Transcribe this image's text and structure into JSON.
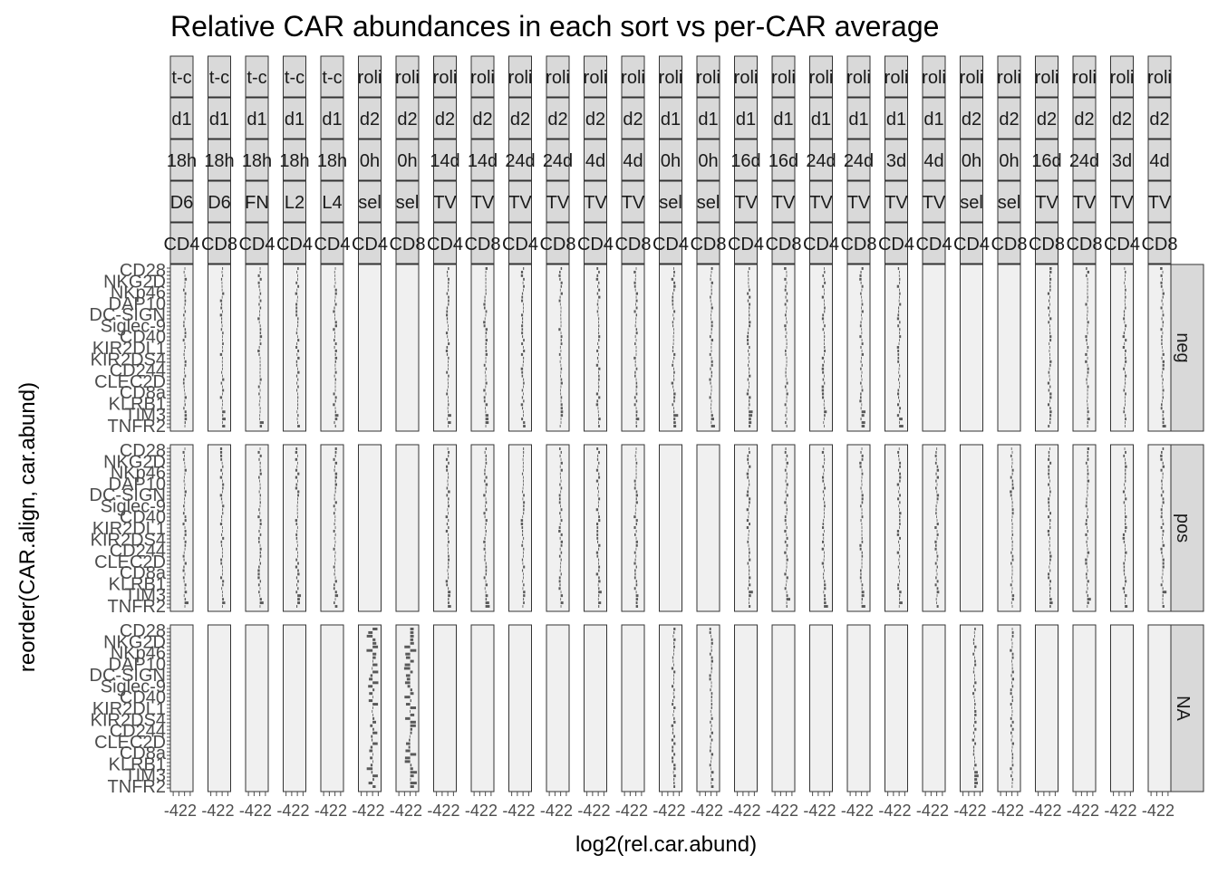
{
  "chart_data": {
    "type": "bar",
    "title": "Relative CAR abundances in each sort vs per-CAR average",
    "xlabel": "log2(rel.car.abund)",
    "ylabel": "reorder(CAR.align, car.abund)",
    "orientation": "horizontal",
    "xlim": [
      -5,
      3
    ],
    "x_tick_values": [
      -4,
      -2,
      0,
      2
    ],
    "x_tick_labels": [
      "-4",
      "-2",
      "0",
      "2"
    ],
    "row_facets": [
      "neg",
      "pos",
      "NA"
    ],
    "column_strips_visible": [
      [
        "t-c",
        "d1",
        "18h",
        "D6",
        "CD4"
      ],
      [
        "t-c",
        "d1",
        "18h",
        "D6",
        "CD8"
      ],
      [
        "t-c",
        "d1",
        "18h",
        "FN",
        "CD4"
      ],
      [
        "t-c",
        "d1",
        "18h",
        "L2",
        "CD4"
      ],
      [
        "t-c",
        "d1",
        "18h",
        "L4",
        "CD4"
      ],
      [
        "roli",
        "d2",
        "0h",
        "sel",
        "CD4"
      ],
      [
        "roli",
        "d2",
        "0h",
        "sel",
        "CD8"
      ],
      [
        "roli",
        "d2",
        "14d",
        "TV",
        "CD4"
      ],
      [
        "roli",
        "d2",
        "14d",
        "TV",
        "CD8"
      ],
      [
        "roli",
        "d2",
        "24d",
        "TV",
        "CD4"
      ],
      [
        "roli",
        "d2",
        "24d",
        "TV",
        "CD8"
      ],
      [
        "roli",
        "d2",
        "4d",
        "TV",
        "CD4"
      ],
      [
        "roli",
        "d2",
        "4d",
        "TV",
        "CD8"
      ],
      [
        "roli",
        "d1",
        "0h",
        "sel",
        "CD4"
      ],
      [
        "roli",
        "d1",
        "0h",
        "sel",
        "CD8"
      ],
      [
        "roli",
        "d1",
        "16d",
        "TV",
        "CD4"
      ],
      [
        "roli",
        "d1",
        "16d",
        "TV",
        "CD8"
      ],
      [
        "roli",
        "d1",
        "24d",
        "TV",
        "CD4"
      ],
      [
        "roli",
        "d1",
        "24d",
        "TV",
        "CD8"
      ],
      [
        "roli",
        "d1",
        "3d",
        "TV",
        "CD4"
      ],
      [
        "roli",
        "d1",
        "4d",
        "TV",
        "CD4"
      ],
      [
        "roli",
        "d2",
        "0h",
        "sel",
        "CD4"
      ],
      [
        "roli",
        "d2",
        "0h",
        "sel",
        "CD8"
      ],
      [
        "roli",
        "d2",
        "16d",
        "TV",
        "CD8"
      ],
      [
        "roli",
        "d2",
        "24d",
        "TV",
        "CD8"
      ],
      [
        "roli",
        "d2",
        "3d",
        "TV",
        "CD4"
      ],
      [
        "roli",
        "d2",
        "4d",
        "TV",
        "CD8"
      ]
    ],
    "y_tick_labels_visible": [
      "CD28",
      "NKG2D",
      "NKp46",
      "DAP10",
      "DC-SIGN",
      "Siglec-9",
      "CD40",
      "KIR2DL1",
      "KIR2DS4",
      "CD244",
      "CLEC2D",
      "CD8a",
      "KLRB1",
      "TIM3",
      "TNFR2"
    ],
    "panels_with_data": {
      "neg": [
        0,
        1,
        2,
        3,
        4,
        7,
        8,
        9,
        10,
        11,
        12,
        13,
        14,
        15,
        16,
        17,
        18,
        19,
        23,
        24,
        25,
        26
      ],
      "pos": [
        0,
        1,
        2,
        3,
        4,
        7,
        8,
        9,
        10,
        11,
        12,
        15,
        16,
        17,
        18,
        19,
        20,
        22,
        23,
        24,
        25,
        26
      ],
      "NA": [
        5,
        6,
        13,
        14,
        21,
        22
      ]
    },
    "grid": "on",
    "legend": "none"
  }
}
